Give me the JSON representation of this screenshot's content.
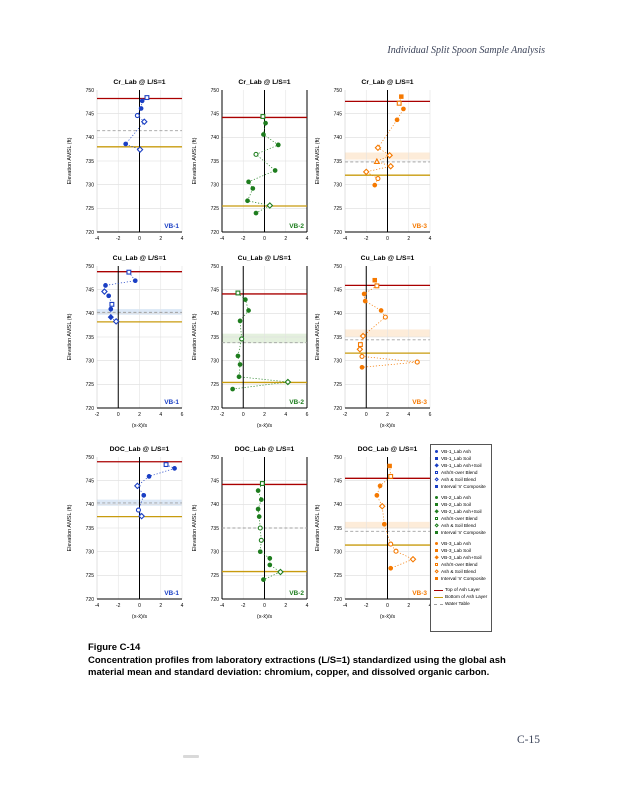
{
  "page": {
    "header": "Individual Split Spoon Sample Analysis",
    "page_number": "C-15"
  },
  "caption": {
    "label": "Figure C-14",
    "text": "Concentration profiles from laboratory extractions (L/S=1) standardized using the global ash material mean and standard deviation: chromium, copper, and dissolved organic carbon."
  },
  "axes": {
    "ylabel": "Elevation AMSL (ft)",
    "xlabel": "(x-x̄)/s",
    "y_ticks": [
      750,
      745,
      740,
      735,
      730,
      725,
      720
    ],
    "y_range": [
      720,
      750
    ]
  },
  "colors": {
    "vb1": "#1a3fc4",
    "vb2": "#1e7d1e",
    "vb3": "#f57900",
    "top_of_ash": "#aa0000",
    "bottom_of_ash": "#c89b0e",
    "water_table": "#a0a0a0",
    "band_vb1": "#dce8f6",
    "band_vb2": "#e4f0de",
    "band_vb3": "#fdecd9"
  },
  "chart_data": [
    {
      "type": "scatter",
      "title": "Cr_Lab @ L/S=1",
      "site": "VB-1",
      "color": "#1a3fc4",
      "band_color": "#dce8f6",
      "x_range": [
        -4,
        4
      ],
      "x_ticks": [
        -4,
        -2,
        0,
        2,
        4
      ],
      "show_xlabel": false,
      "lines": {
        "top_of_ash": 748.2,
        "bottom_of_ash": 738.0,
        "water_table": 741.4
      },
      "band": null,
      "points": [
        [
          0.7,
          748.4,
          "sq",
          "o"
        ],
        [
          0.25,
          747.7,
          "ci",
          "f"
        ],
        [
          0.15,
          746.1,
          "ci",
          "f"
        ],
        [
          -0.2,
          744.6,
          "ci",
          "o"
        ],
        [
          0.45,
          743.3,
          "di",
          "o"
        ],
        [
          -1.3,
          738.6,
          "ci",
          "f"
        ],
        [
          0.05,
          737.4,
          "di",
          "o"
        ]
      ]
    },
    {
      "type": "scatter",
      "title": "Cr_Lab @ L/S=1",
      "site": "VB-2",
      "color": "#1e7d1e",
      "band_color": "#e4f0de",
      "x_range": [
        -4,
        4
      ],
      "x_ticks": [
        -4,
        -2,
        0,
        2,
        4
      ],
      "show_xlabel": false,
      "lines": {
        "top_of_ash": 744.2,
        "bottom_of_ash": 725.5,
        "water_table": null
      },
      "band": null,
      "points": [
        [
          -0.15,
          744.4,
          "sq",
          "o"
        ],
        [
          0.1,
          743.0,
          "ci",
          "f"
        ],
        [
          -0.1,
          740.6,
          "ci",
          "f"
        ],
        [
          1.3,
          738.4,
          "ci",
          "f"
        ],
        [
          -0.8,
          736.4,
          "ci",
          "o"
        ],
        [
          1.0,
          733.0,
          "ci",
          "f"
        ],
        [
          -1.5,
          730.6,
          "ci",
          "f"
        ],
        [
          -1.1,
          729.2,
          "ci",
          "f"
        ],
        [
          -1.6,
          726.6,
          "ci",
          "f"
        ],
        [
          0.5,
          725.6,
          "di",
          "o"
        ],
        [
          -0.8,
          724.0,
          "ci",
          "f"
        ]
      ]
    },
    {
      "type": "scatter",
      "title": "Cr_Lab @ L/S=1",
      "site": "VB-3",
      "color": "#f57900",
      "band_color": "#fdecd9",
      "x_range": [
        -4,
        4
      ],
      "x_ticks": [
        -4,
        -2,
        0,
        2,
        4
      ],
      "show_xlabel": false,
      "lines": {
        "top_of_ash": 747.6,
        "bottom_of_ash": 732.0,
        "water_table": 734.8
      },
      "band": [
        735.3,
        736.8
      ],
      "points": [
        [
          1.3,
          748.6,
          "sq",
          "f"
        ],
        [
          1.1,
          747.2,
          "sq",
          "o"
        ],
        [
          1.5,
          746.0,
          "ci",
          "f"
        ],
        [
          0.9,
          743.7,
          "ci",
          "f"
        ],
        [
          -0.9,
          737.8,
          "di",
          "o"
        ],
        [
          0.2,
          736.2,
          "di",
          "o"
        ],
        [
          -1.0,
          734.9,
          "tr",
          "o"
        ],
        [
          0.3,
          733.9,
          "di",
          "o"
        ],
        [
          -2.0,
          732.7,
          "di",
          "o"
        ],
        [
          -0.9,
          731.3,
          "ci",
          "o"
        ],
        [
          -1.2,
          729.9,
          "ci",
          "f"
        ]
      ]
    },
    {
      "type": "scatter",
      "title": "Cu_Lab @ L/S=1",
      "site": "VB-1",
      "color": "#1a3fc4",
      "band_color": "#dce8f6",
      "x_range": [
        -2,
        6
      ],
      "x_ticks": [
        -2,
        0,
        2,
        4,
        6
      ],
      "show_xlabel": true,
      "lines": {
        "top_of_ash": 748.8,
        "bottom_of_ash": 738.2,
        "water_table": 740.2
      },
      "band": [
        739.7,
        740.9
      ],
      "points": [
        [
          1.0,
          748.7,
          "sq",
          "o"
        ],
        [
          1.6,
          746.9,
          "ci",
          "f"
        ],
        [
          -1.2,
          745.9,
          "ci",
          "f"
        ],
        [
          -1.3,
          744.6,
          "di",
          "o"
        ],
        [
          -0.9,
          743.7,
          "ci",
          "f"
        ],
        [
          -0.6,
          741.9,
          "sq",
          "o"
        ],
        [
          -0.7,
          740.9,
          "ci",
          "f"
        ],
        [
          -0.7,
          739.2,
          "di",
          "f"
        ],
        [
          -0.2,
          738.3,
          "di",
          "o"
        ]
      ]
    },
    {
      "type": "scatter",
      "title": "Cu_Lab @ L/S=1",
      "site": "VB-2",
      "color": "#1e7d1e",
      "band_color": "#e4f0de",
      "x_range": [
        -2,
        6
      ],
      "x_ticks": [
        -2,
        0,
        2,
        4,
        6
      ],
      "show_xlabel": true,
      "lines": {
        "top_of_ash": 744.1,
        "bottom_of_ash": 725.4,
        "water_table": 733.8
      },
      "band": [
        733.7,
        735.7
      ],
      "points": [
        [
          -0.5,
          744.3,
          "sq",
          "o"
        ],
        [
          0.2,
          742.9,
          "ci",
          "f"
        ],
        [
          0.5,
          740.6,
          "ci",
          "f"
        ],
        [
          -0.3,
          738.4,
          "ci",
          "f"
        ],
        [
          -0.15,
          734.6,
          "ci",
          "o"
        ],
        [
          -0.5,
          731.0,
          "ci",
          "f"
        ],
        [
          -0.3,
          729.2,
          "ci",
          "f"
        ],
        [
          -0.4,
          726.6,
          "ci",
          "f"
        ],
        [
          4.2,
          725.5,
          "di",
          "o"
        ],
        [
          -1.0,
          724.0,
          "ci",
          "f"
        ]
      ]
    },
    {
      "type": "scatter",
      "title": "Cu_Lab @ L/S=1",
      "site": "VB-3",
      "color": "#f57900",
      "band_color": "#fdecd9",
      "x_range": [
        -2,
        6
      ],
      "x_ticks": [
        -2,
        0,
        2,
        4,
        6
      ],
      "show_xlabel": true,
      "lines": {
        "top_of_ash": 745.9,
        "bottom_of_ash": 731.6,
        "water_table": 734.4
      },
      "band": [
        735.0,
        736.6
      ],
      "points": [
        [
          0.8,
          747.0,
          "sq",
          "f"
        ],
        [
          1.0,
          745.8,
          "sq",
          "o"
        ],
        [
          -0.2,
          744.1,
          "ci",
          "f"
        ],
        [
          -0.1,
          742.6,
          "ci",
          "f"
        ],
        [
          1.4,
          740.6,
          "ci",
          "f"
        ],
        [
          1.8,
          739.2,
          "ci",
          "o"
        ],
        [
          -0.3,
          735.2,
          "di",
          "o"
        ],
        [
          -0.55,
          733.4,
          "sq",
          "o"
        ],
        [
          -0.6,
          732.4,
          "di",
          "o"
        ],
        [
          -0.4,
          730.9,
          "ci",
          "o"
        ],
        [
          4.8,
          729.7,
          "ci",
          "o"
        ],
        [
          -0.4,
          728.6,
          "ci",
          "f"
        ]
      ]
    },
    {
      "type": "scatter",
      "title": "DOC_Lab @ L/S=1",
      "site": "VB-1",
      "color": "#1a3fc4",
      "band_color": "#dce8f6",
      "x_range": [
        -4,
        4
      ],
      "x_ticks": [
        -4,
        -2,
        0,
        2,
        4
      ],
      "show_xlabel": true,
      "lines": {
        "top_of_ash": 749.0,
        "bottom_of_ash": 737.4,
        "water_table": 740.3
      },
      "band": [
        739.7,
        741.0
      ],
      "points": [
        [
          2.5,
          748.4,
          "sq",
          "o"
        ],
        [
          3.3,
          747.6,
          "ci",
          "f"
        ],
        [
          0.9,
          745.9,
          "ci",
          "f"
        ],
        [
          -0.2,
          743.9,
          "di",
          "o"
        ],
        [
          0.4,
          741.9,
          "ci",
          "f"
        ],
        [
          -0.1,
          738.8,
          "ci",
          "o"
        ],
        [
          0.2,
          737.5,
          "di",
          "o"
        ]
      ]
    },
    {
      "type": "scatter",
      "title": "DOC_Lab @ L/S=1",
      "site": "VB-2",
      "color": "#1e7d1e",
      "band_color": "#e4f0de",
      "x_range": [
        -4,
        4
      ],
      "x_ticks": [
        -4,
        -2,
        0,
        2,
        4
      ],
      "show_xlabel": true,
      "lines": {
        "top_of_ash": 744.2,
        "bottom_of_ash": 725.8,
        "water_table": 735.0
      },
      "band": null,
      "points": [
        [
          -0.2,
          744.4,
          "sq",
          "o"
        ],
        [
          -0.6,
          742.9,
          "ci",
          "f"
        ],
        [
          -0.3,
          741.0,
          "ci",
          "f"
        ],
        [
          -0.6,
          739.0,
          "ci",
          "f"
        ],
        [
          -0.5,
          737.4,
          "ci",
          "f"
        ],
        [
          -0.4,
          735.0,
          "ci",
          "o"
        ],
        [
          -0.3,
          732.4,
          "ci",
          "o"
        ],
        [
          -0.4,
          730.0,
          "ci",
          "f"
        ],
        [
          0.5,
          728.6,
          "ci",
          "f"
        ],
        [
          0.5,
          727.2,
          "ci",
          "f"
        ],
        [
          1.5,
          725.7,
          "di",
          "o"
        ],
        [
          -0.1,
          724.1,
          "ci",
          "f"
        ]
      ]
    },
    {
      "type": "scatter",
      "title": "DOC_Lab @ L/S=1",
      "site": "VB-3",
      "color": "#f57900",
      "band_color": "#fdecd9",
      "x_range": [
        -4,
        4
      ],
      "x_ticks": [
        -4,
        -2,
        0,
        2,
        4
      ],
      "show_xlabel": true,
      "lines": {
        "top_of_ash": 745.5,
        "bottom_of_ash": 731.4,
        "water_table": 734.3
      },
      "band": [
        734.9,
        736.3
      ],
      "points": [
        [
          0.2,
          748.1,
          "sq",
          "f"
        ],
        [
          0.3,
          745.9,
          "sq",
          "o"
        ],
        [
          -0.7,
          743.9,
          "ci",
          "f"
        ],
        [
          -1.0,
          741.9,
          "ci",
          "f"
        ],
        [
          -0.5,
          739.6,
          "di",
          "o"
        ],
        [
          -0.3,
          735.8,
          "ci",
          "f"
        ],
        [
          0.3,
          731.6,
          "ci",
          "o"
        ],
        [
          0.8,
          730.1,
          "ci",
          "o"
        ],
        [
          2.4,
          728.4,
          "di",
          "o"
        ],
        [
          0.3,
          726.5,
          "ci",
          "f"
        ]
      ]
    }
  ],
  "legend": {
    "groups": [
      {
        "color": "#1a3fc4",
        "items": [
          {
            "label": "VB-1_Lab Ash",
            "marker": "ci",
            "fill": "f"
          },
          {
            "label": "VB-1_Lab Soil",
            "marker": "sq",
            "fill": "f"
          },
          {
            "label": "VB-1_Lab Ash+Soil",
            "marker": "di",
            "fill": "f"
          },
          {
            "label": "Ash/X-over Blend",
            "marker": "sq",
            "fill": "o"
          },
          {
            "label": "Ash & Soil Blend",
            "marker": "di",
            "fill": "o"
          },
          {
            "label": "Interval 'n' Composite",
            "marker": "sq",
            "fill": "f"
          }
        ]
      },
      {
        "color": "#1e7d1e",
        "items": [
          {
            "label": "VB-2_Lab Ash",
            "marker": "ci",
            "fill": "f"
          },
          {
            "label": "VB-2_Lab Soil",
            "marker": "sq",
            "fill": "f"
          },
          {
            "label": "VB-2_Lab Ash+Soil",
            "marker": "di",
            "fill": "f"
          },
          {
            "label": "Ash/X-over Blend",
            "marker": "sq",
            "fill": "o"
          },
          {
            "label": "Ash & Soil Blend",
            "marker": "di",
            "fill": "o"
          },
          {
            "label": "Interval 'n' Composite",
            "marker": "sq",
            "fill": "f"
          }
        ]
      },
      {
        "color": "#f57900",
        "items": [
          {
            "label": "VB-3_Lab Ash",
            "marker": "ci",
            "fill": "f"
          },
          {
            "label": "VB-3_Lab Soil",
            "marker": "sq",
            "fill": "f"
          },
          {
            "label": "VB-3_Lab Ash+Soil",
            "marker": "di",
            "fill": "f"
          },
          {
            "label": "Ash/X-over Blend",
            "marker": "sq",
            "fill": "o"
          },
          {
            "label": "Ash & Soil Blend",
            "marker": "di",
            "fill": "o"
          },
          {
            "label": "Interval 'n' Composite",
            "marker": "sq",
            "fill": "f"
          }
        ]
      }
    ],
    "lines": [
      {
        "label": "Top of Ash Layer",
        "color": "#aa0000",
        "style": "solid"
      },
      {
        "label": "Bottom of Ash Layer",
        "color": "#c89b0e",
        "style": "solid"
      },
      {
        "label": "Water Table",
        "color": "#a0a0a0",
        "style": "dashed"
      }
    ]
  }
}
